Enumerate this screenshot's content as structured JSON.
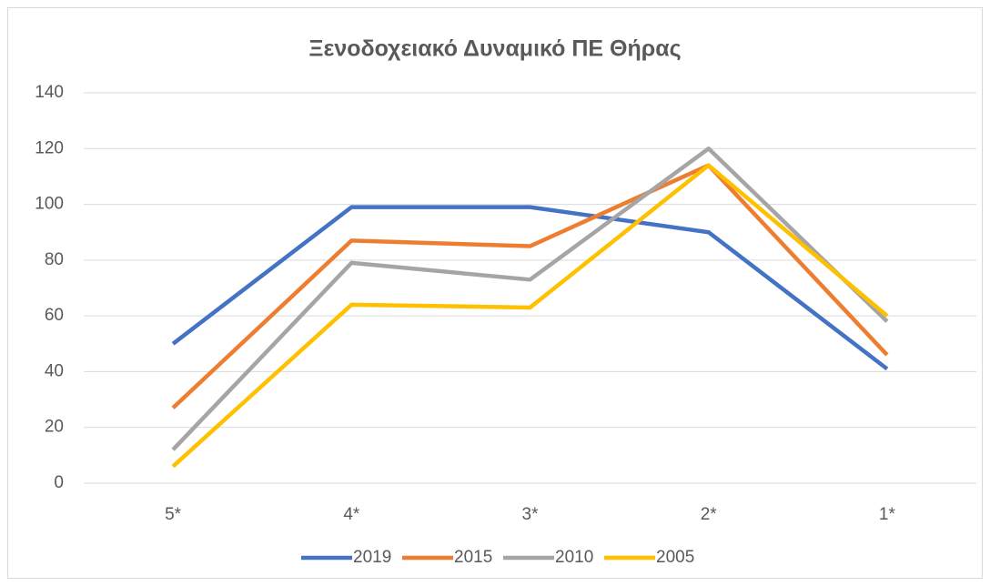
{
  "chart_data": {
    "type": "line",
    "title": "Ξενοδοχειακό Δυναμικό ΠΕ Θήρας",
    "categories": [
      "5*",
      "4*",
      "3*",
      "2*",
      "1*"
    ],
    "series": [
      {
        "name": "2019",
        "color": "#4472c4",
        "values": [
          50,
          99,
          99,
          90,
          41
        ]
      },
      {
        "name": "2015",
        "color": "#ed7d31",
        "values": [
          27,
          87,
          85,
          114,
          46
        ]
      },
      {
        "name": "2010",
        "color": "#a5a5a5",
        "values": [
          12,
          79,
          73,
          120,
          58
        ]
      },
      {
        "name": "2005",
        "color": "#ffc000",
        "values": [
          6,
          64,
          63,
          114,
          60
        ]
      }
    ],
    "ylim": [
      0,
      140
    ],
    "yticks": [
      0,
      20,
      40,
      60,
      80,
      100,
      120,
      140
    ],
    "grid": true,
    "legend": "bottom"
  }
}
